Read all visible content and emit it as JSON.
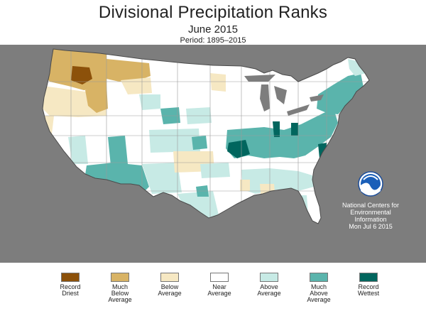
{
  "header": {
    "title": "Divisional Precipitation Ranks",
    "subtitle": "June 2015",
    "period": "Period: 1895–2015"
  },
  "agency": {
    "line1": "National Centers for",
    "line2": "Environmental",
    "line3": "Information",
    "line4": "Mon Jul  6 2015",
    "logo_icon": "noaa-logo-icon"
  },
  "colors": {
    "record_driest": "#8c510a",
    "much_below": "#d8b365",
    "below": "#f6e8c3",
    "near": "#ffffff",
    "above": "#c7eae5",
    "much_above": "#5ab4ac",
    "record_wettest": "#01665e",
    "background": "#7d7d7d"
  },
  "legend": [
    {
      "line1": "Record",
      "line2": "Driest",
      "line3": "",
      "color": "#8c510a"
    },
    {
      "line1": "Much",
      "line2": "Below",
      "line3": "Average",
      "color": "#d8b365"
    },
    {
      "line1": "Below",
      "line2": "Average",
      "line3": "",
      "color": "#f6e8c3"
    },
    {
      "line1": "Near",
      "line2": "Average",
      "line3": "",
      "color": "#ffffff"
    },
    {
      "line1": "Above",
      "line2": "Average",
      "line3": "",
      "color": "#c7eae5"
    },
    {
      "line1": "Much",
      "line2": "Above",
      "line3": "Average",
      "color": "#5ab4ac"
    },
    {
      "line1": "Record",
      "line2": "Wettest",
      "line3": "",
      "color": "#01665e"
    }
  ]
}
